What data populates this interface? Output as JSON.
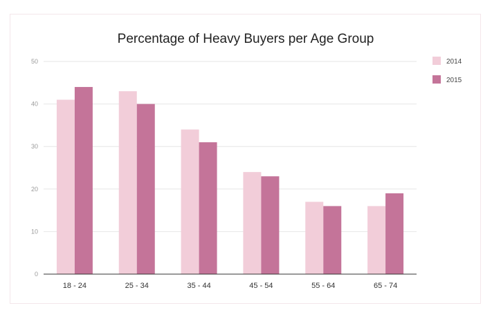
{
  "chart_data": {
    "type": "bar",
    "title": "Percentage of Heavy Buyers per Age Group",
    "xlabel": "",
    "ylabel": "",
    "categories": [
      "18 - 24",
      "25 - 34",
      "35 - 44",
      "45 - 54",
      "55 - 64",
      "65 - 74"
    ],
    "series": [
      {
        "name": "2014",
        "color": "#f2cdd9",
        "values": [
          41,
          43,
          34,
          24,
          17,
          16
        ]
      },
      {
        "name": "2015",
        "color": "#c47499",
        "values": [
          44,
          40,
          31,
          23,
          16,
          19
        ]
      }
    ],
    "ylim": [
      0,
      50
    ],
    "yticks": [
      0,
      10,
      20,
      30,
      40,
      50
    ],
    "grid": true,
    "legend_position": "right"
  }
}
